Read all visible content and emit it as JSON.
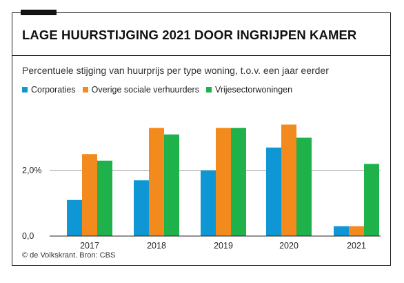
{
  "title": "LAGE HUURSTIJGING 2021 DOOR INGRIJPEN KAMER",
  "subtitle": "Percentuele stijging van huurprijs per type woning, t.o.v. een jaar eerder",
  "credit": "© de Volkskrant. Bron: CBS",
  "chart_data": {
    "type": "bar",
    "categories": [
      "2017",
      "2018",
      "2019",
      "2020",
      "2021"
    ],
    "series": [
      {
        "name": "Corporaties",
        "color": "#0f96d4",
        "values": [
          1.1,
          1.7,
          2.0,
          2.7,
          0.3
        ]
      },
      {
        "name": "Overige sociale verhuurders",
        "color": "#f28a1e",
        "values": [
          2.5,
          3.3,
          3.3,
          3.4,
          0.3
        ]
      },
      {
        "name": "Vrijesectorwoningen",
        "color": "#1fb14a",
        "values": [
          2.3,
          3.1,
          3.3,
          3.0,
          2.2
        ]
      }
    ],
    "yticks": [
      {
        "value": 0,
        "label": "0,0"
      },
      {
        "value": 2,
        "label": "2,0%"
      }
    ],
    "ylim": [
      0,
      3.5
    ],
    "grid": true,
    "legend_position": "top-left"
  }
}
